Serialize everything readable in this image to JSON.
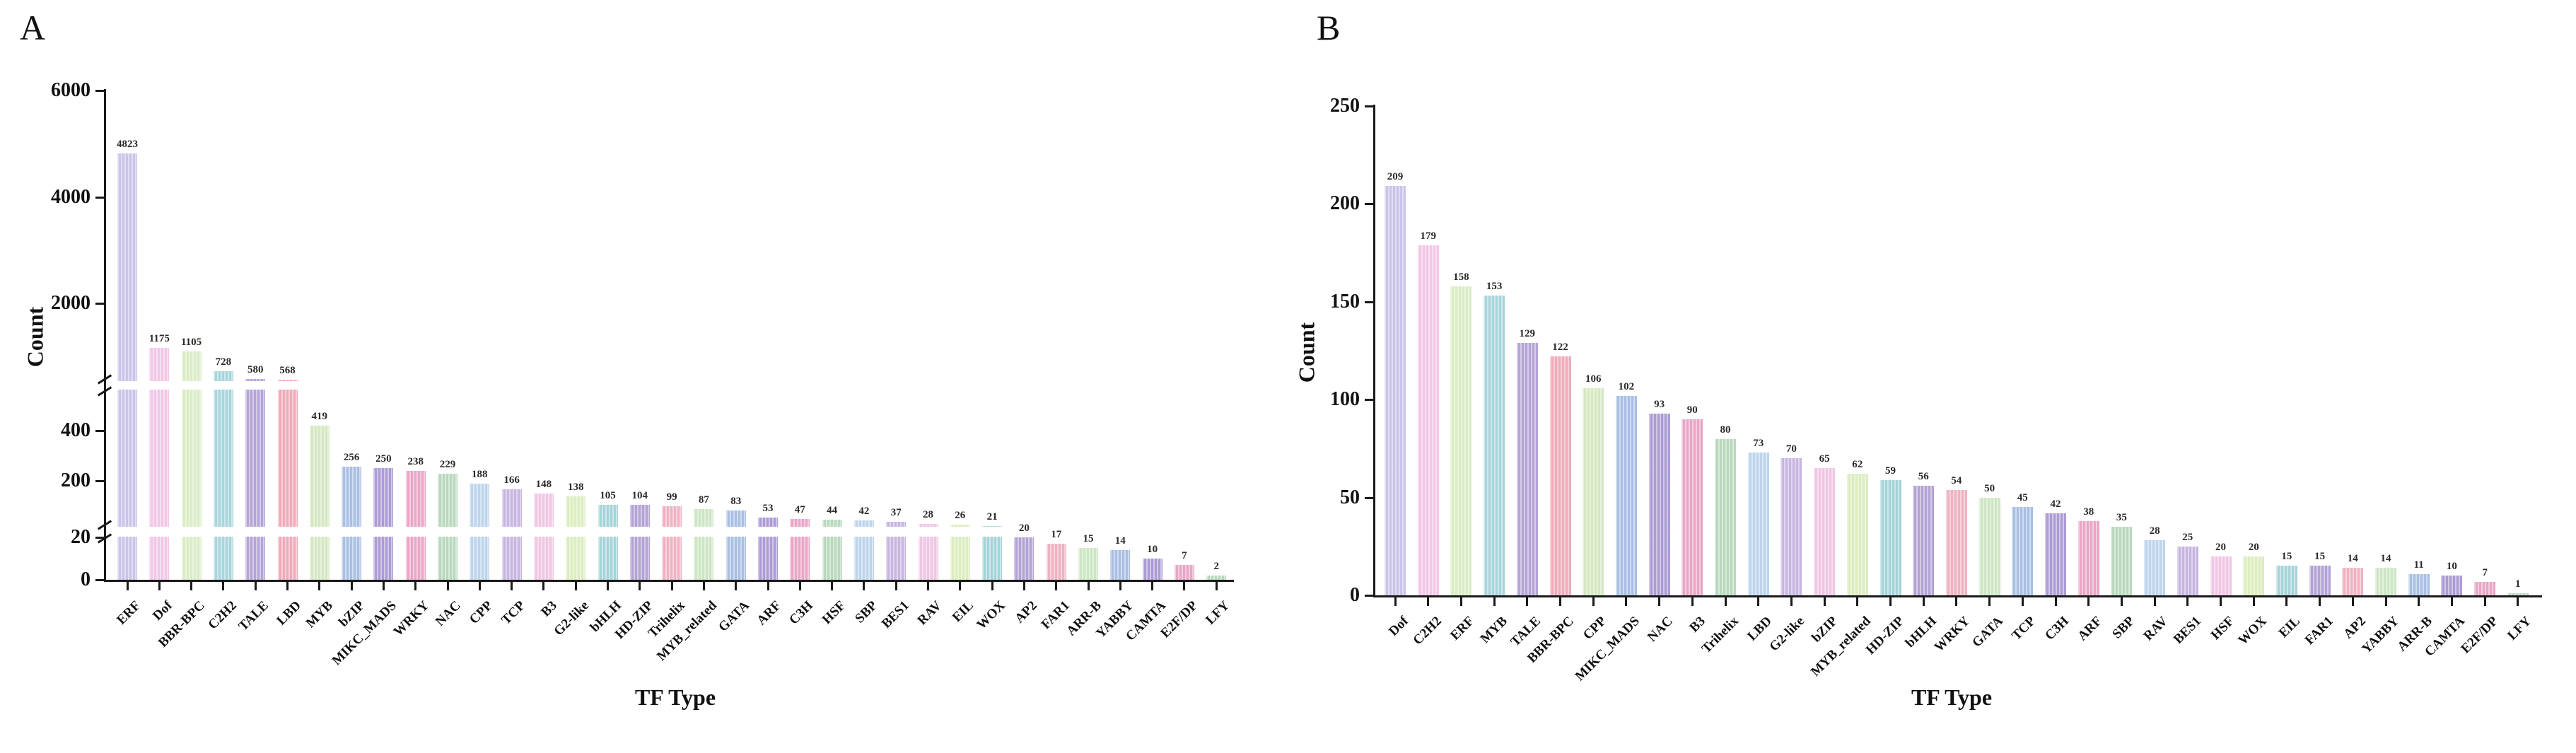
{
  "panels": [
    {
      "label": "A"
    },
    {
      "label": "B"
    }
  ],
  "chart_data": [
    {
      "type": "bar",
      "panel": "A",
      "title": "",
      "xlabel": "TF Type",
      "ylabel": "Count",
      "yticks": [
        0,
        20,
        200,
        400,
        2000,
        4000,
        6000
      ],
      "axis_breaks": [
        "between 20 and 200",
        "between 400 and 2000"
      ],
      "grid": false,
      "legend": false,
      "categories": [
        "ERF",
        "Dof",
        "BBR-BPC",
        "C2H2",
        "TALE",
        "LBD",
        "MYB",
        "bZIP",
        "MIKC_MADS",
        "WRKY",
        "NAC",
        "CPP",
        "TCP",
        "B3",
        "G2-like",
        "bHLH",
        "HD-ZIP",
        "Trihelix",
        "MYB_related",
        "GATA",
        "ARF",
        "C3H",
        "HSF",
        "SBP",
        "BES1",
        "RAV",
        "EIL",
        "WOX",
        "AP2",
        "FAR1",
        "ARR-B",
        "YABBY",
        "CAMTA",
        "E2F/DP",
        "LFY"
      ],
      "values": [
        4823,
        1175,
        1105,
        728,
        580,
        568,
        419,
        256,
        250,
        238,
        229,
        188,
        166,
        148,
        138,
        105,
        104,
        99,
        87,
        83,
        53,
        47,
        44,
        42,
        37,
        28,
        26,
        21,
        20,
        17,
        15,
        14,
        10,
        7,
        2
      ]
    },
    {
      "type": "bar",
      "panel": "B",
      "title": "",
      "xlabel": "TF Type",
      "ylabel": "Count",
      "ylim": [
        0,
        250
      ],
      "yticks": [
        0,
        50,
        100,
        150,
        200,
        250
      ],
      "grid": false,
      "legend": false,
      "categories": [
        "Dof",
        "C2H2",
        "ERF",
        "MYB",
        "TALE",
        "BBR-BPC",
        "CPP",
        "MIKC_MADS",
        "NAC",
        "B3",
        "Trihelix",
        "LBD",
        "G2-like",
        "bZIP",
        "MYB_related",
        "HD-ZIP",
        "bHLH",
        "WRKY",
        "GATA",
        "TCP",
        "C3H",
        "ARF",
        "SBP",
        "RAV",
        "BES1",
        "HSF",
        "WOX",
        "EIL",
        "FAR1",
        "AP2",
        "YABBY",
        "ARR-B",
        "CAMTA",
        "E2F/DP",
        "LFY"
      ],
      "values": [
        209,
        179,
        158,
        153,
        129,
        122,
        106,
        102,
        93,
        90,
        80,
        73,
        70,
        65,
        62,
        59,
        56,
        54,
        50,
        45,
        42,
        38,
        35,
        28,
        25,
        20,
        20,
        15,
        15,
        14,
        14,
        11,
        10,
        7,
        1
      ]
    }
  ],
  "palette": {
    "first_seven": [
      "#cac4e9",
      "#f3c6e6",
      "#daecc5",
      "#a8d5dc",
      "#b4a4d7",
      "#eeacba",
      "#d5e8c2"
    ],
    "repeat_cycles": [
      [
        "#a9bfe3",
        "#ab9cd6",
        "#e9a6c6",
        "#b9d8bd"
      ],
      [
        "#bdd5ec",
        "#c7b5e1",
        "#f0c6e3",
        "#dcedbf"
      ],
      [
        "#a5d4d8",
        "#b2a3d5",
        "#efb2c1",
        "#cde6c4"
      ]
    ],
    "axis_color": "#1a1a1a",
    "label_color": "#2a2a2a"
  }
}
